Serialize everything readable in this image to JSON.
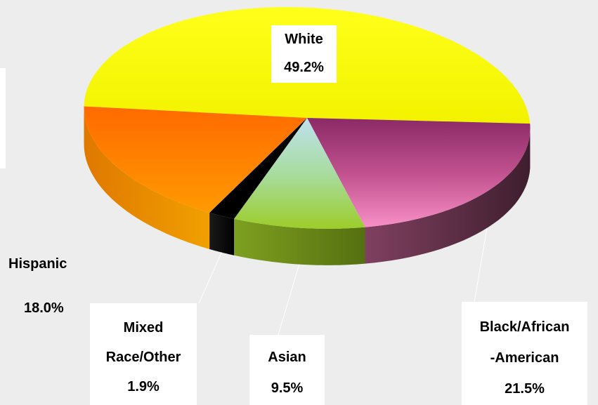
{
  "chart_data": {
    "type": "pie",
    "title": "",
    "slices": [
      {
        "label": "White",
        "value": 49.2,
        "value_text": "49.2%",
        "color": "#ffff00"
      },
      {
        "label": "Black/African-American",
        "label_lines": [
          "Black/African",
          "-American"
        ],
        "value": 21.5,
        "value_text": "21.5%",
        "color": "#c8508c"
      },
      {
        "label": "Asian",
        "value": 9.5,
        "value_text": "9.5%",
        "color": "#9fd23c"
      },
      {
        "label": "Mixed Race/Other",
        "label_lines": [
          "Mixed",
          "Race/Other"
        ],
        "value": 1.9,
        "value_text": "1.9%",
        "color": "#000000"
      },
      {
        "label": "Hispanic",
        "value": 18.0,
        "value_text": "18.0%",
        "color": "#ff8c00"
      }
    ],
    "legend": "none",
    "style": "3d-tilted"
  }
}
